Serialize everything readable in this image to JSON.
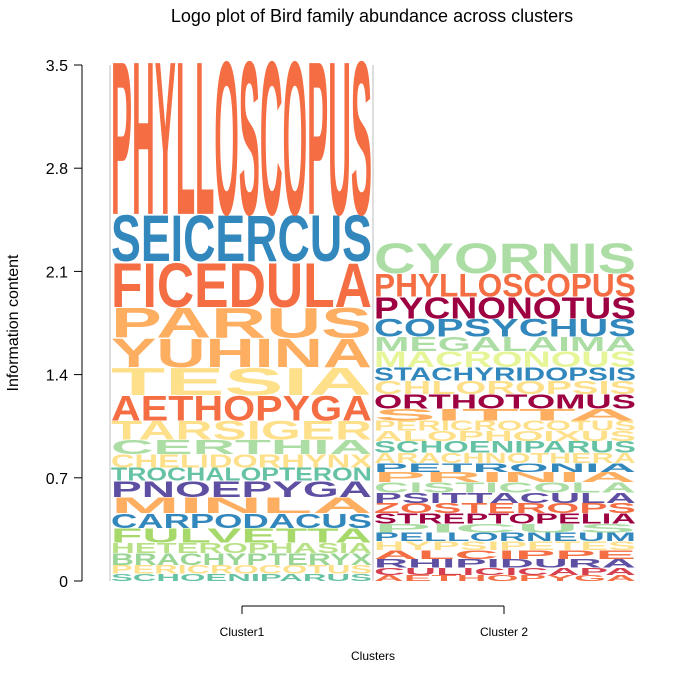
{
  "chart_data": {
    "type": "logo",
    "title": "Logo plot of Bird family abundance across clusters",
    "xlabel": "Clusters",
    "ylabel": "Information content",
    "ylim": [
      0,
      3.5
    ],
    "yticks": [
      "0",
      "0.7",
      "1.4",
      "2.1",
      "2.8",
      "3.5"
    ],
    "categories": [
      "Cluster1",
      "Cluster 2"
    ],
    "clusters": [
      {
        "name": "Cluster1",
        "stack": [
          {
            "label": "SCHOENIPARUS",
            "value": 0.05,
            "color": "#66c2a5"
          },
          {
            "label": "PERICROCOTUS",
            "value": 0.06,
            "color": "#fee08b"
          },
          {
            "label": "BRACHYPTERYX",
            "value": 0.08,
            "color": "#99d594"
          },
          {
            "label": "HETEROPHASIA",
            "value": 0.07,
            "color": "#b8e186"
          },
          {
            "label": "FULVETTA",
            "value": 0.1,
            "color": "#a6d96a"
          },
          {
            "label": "CARPODACUS",
            "value": 0.1,
            "color": "#3288bd"
          },
          {
            "label": "MINLA",
            "value": 0.11,
            "color": "#fdae61"
          },
          {
            "label": "PNOEPYGA",
            "value": 0.11,
            "color": "#5e4fa2"
          },
          {
            "label": "TROCHALOPTERON",
            "value": 0.09,
            "color": "#66c2a5"
          },
          {
            "label": "CHELIDORHYNX",
            "value": 0.09,
            "color": "#fee08b"
          },
          {
            "label": "CERTHIA",
            "value": 0.1,
            "color": "#abdda4"
          },
          {
            "label": "TARSIGER",
            "value": 0.13,
            "color": "#fee08b"
          },
          {
            "label": "AETHOPYGA",
            "value": 0.17,
            "color": "#f46d43"
          },
          {
            "label": "TESIA",
            "value": 0.19,
            "color": "#fee08b"
          },
          {
            "label": "YUHINA",
            "value": 0.2,
            "color": "#fdae61"
          },
          {
            "label": "PARUS",
            "value": 0.21,
            "color": "#fdae61"
          },
          {
            "label": "FICEDULA",
            "value": 0.31,
            "color": "#f46d43"
          },
          {
            "label": "SEICERCUS",
            "value": 0.32,
            "color": "#3288bd"
          },
          {
            "label": "PHYLLOSCOPUS",
            "value": 1.07,
            "color": "#f46d43"
          }
        ]
      },
      {
        "name": "Cluster 2",
        "stack": [
          {
            "label": "AETHOPYGA",
            "value": 0.04,
            "color": "#f46d43"
          },
          {
            "label": "CULICICAPA",
            "value": 0.05,
            "color": "#d53e4f"
          },
          {
            "label": "RHIPIDURA",
            "value": 0.06,
            "color": "#5e4fa2"
          },
          {
            "label": "ALCIPPE",
            "value": 0.06,
            "color": "#f46d43"
          },
          {
            "label": "HYPSIPETES",
            "value": 0.06,
            "color": "#fee08b"
          },
          {
            "label": "PELLORNEUM",
            "value": 0.06,
            "color": "#3288bd"
          },
          {
            "label": "PICUS",
            "value": 0.06,
            "color": "#abdda4"
          },
          {
            "label": "STREPTOPELIA",
            "value": 0.07,
            "color": "#9e0142"
          },
          {
            "label": "ZOSTEROPS",
            "value": 0.07,
            "color": "#f46d43"
          },
          {
            "label": "PSITTACULA",
            "value": 0.07,
            "color": "#5e4fa2"
          },
          {
            "label": "CISTICOLA",
            "value": 0.07,
            "color": "#abdda4"
          },
          {
            "label": "PRINIA",
            "value": 0.07,
            "color": "#fdae61"
          },
          {
            "label": "PETRONIA",
            "value": 0.06,
            "color": "#3288bd"
          },
          {
            "label": "ARACHNOTHERA",
            "value": 0.07,
            "color": "#fee08b"
          },
          {
            "label": "SCHOENIPARUS",
            "value": 0.08,
            "color": "#66c2a5"
          },
          {
            "label": "ALOPHOIXUS",
            "value": 0.07,
            "color": "#fee08b"
          },
          {
            "label": "PERICROCOTUS",
            "value": 0.07,
            "color": "#fee08b"
          },
          {
            "label": "SITTA",
            "value": 0.08,
            "color": "#fdae61"
          },
          {
            "label": "ORTHOTOMUS",
            "value": 0.1,
            "color": "#9e0142"
          },
          {
            "label": "CHLOROPSIS",
            "value": 0.09,
            "color": "#fee08b"
          },
          {
            "label": "STACHYRIDOPSIS",
            "value": 0.09,
            "color": "#3288bd"
          },
          {
            "label": "MACRONOUS",
            "value": 0.11,
            "color": "#e6f598"
          },
          {
            "label": "MEGALAIMA",
            "value": 0.1,
            "color": "#abdda4"
          },
          {
            "label": "COPSYCHUS",
            "value": 0.12,
            "color": "#3288bd"
          },
          {
            "label": "PYCNONOTUS",
            "value": 0.15,
            "color": "#9e0142"
          },
          {
            "label": "PHYLLOSCOPUS",
            "value": 0.16,
            "color": "#f46d43"
          },
          {
            "label": "CYORNIS",
            "value": 0.21,
            "color": "#abdda4"
          }
        ]
      }
    ]
  }
}
